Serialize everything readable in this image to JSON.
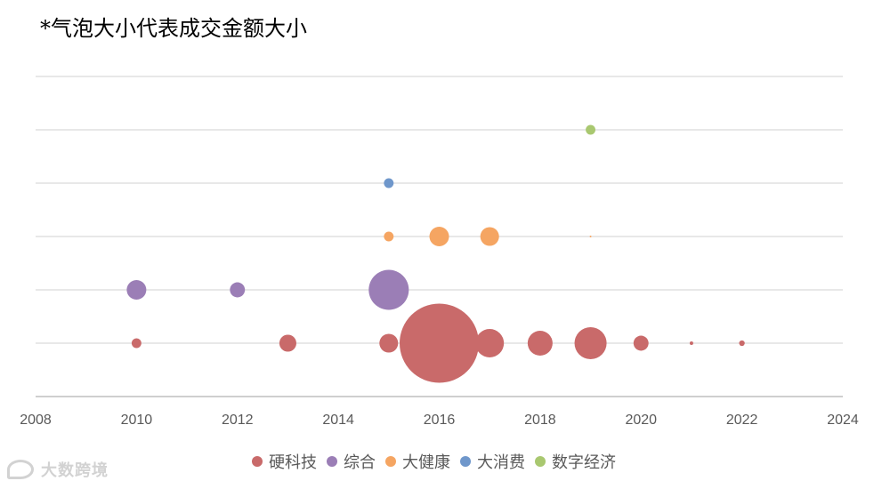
{
  "watermark": "大数跨境",
  "chart_data": {
    "type": "scatter",
    "variant": "bubble",
    "title": "*气泡大小代表成交金额大小",
    "xlabel": "",
    "ylabel": "",
    "xlim": [
      2008,
      2024
    ],
    "xticks": [
      2008,
      2010,
      2012,
      2014,
      2016,
      2018,
      2020,
      2022,
      2024
    ],
    "ylim": [
      0,
      6
    ],
    "y_gridlines": [
      1,
      2,
      3,
      4,
      5,
      6
    ],
    "grid": "horizontal",
    "y_tick_labels_shown": false,
    "legend_position": "bottom",
    "size_meaning": "成交金额",
    "series": [
      {
        "name": "硬科技",
        "color": "#C96A6A",
        "points": [
          {
            "x": 2010,
            "y": 1,
            "size": 1.5
          },
          {
            "x": 2013,
            "y": 1,
            "size": 4.6
          },
          {
            "x": 2015,
            "y": 1,
            "size": 5.6
          },
          {
            "x": 2016,
            "y": 1,
            "size": 100
          },
          {
            "x": 2017,
            "y": 1,
            "size": 12.9
          },
          {
            "x": 2018,
            "y": 1,
            "size": 9.9
          },
          {
            "x": 2019,
            "y": 1,
            "size": 16.4
          },
          {
            "x": 2020,
            "y": 1,
            "size": 3.6
          },
          {
            "x": 2021,
            "y": 1,
            "size": 0.2
          },
          {
            "x": 2022,
            "y": 1,
            "size": 0.5
          }
        ]
      },
      {
        "name": "综合",
        "color": "#9B7EB6",
        "points": [
          {
            "x": 2010,
            "y": 2,
            "size": 6.1
          },
          {
            "x": 2012,
            "y": 2,
            "size": 3.6
          },
          {
            "x": 2015,
            "y": 2,
            "size": 25.6
          }
        ]
      },
      {
        "name": "大健康",
        "color": "#F5A562",
        "points": [
          {
            "x": 2015,
            "y": 3,
            "size": 1.5
          },
          {
            "x": 2016,
            "y": 3,
            "size": 6.1
          },
          {
            "x": 2017,
            "y": 3,
            "size": 5.6
          },
          {
            "x": 2019,
            "y": 3,
            "size": 0.05
          }
        ]
      },
      {
        "name": "大消费",
        "color": "#6F97CB",
        "points": [
          {
            "x": 2015,
            "y": 4,
            "size": 1.5
          }
        ]
      },
      {
        "name": "数字经济",
        "color": "#A9C870",
        "points": [
          {
            "x": 2019,
            "y": 5,
            "size": 1.5
          }
        ]
      }
    ]
  }
}
